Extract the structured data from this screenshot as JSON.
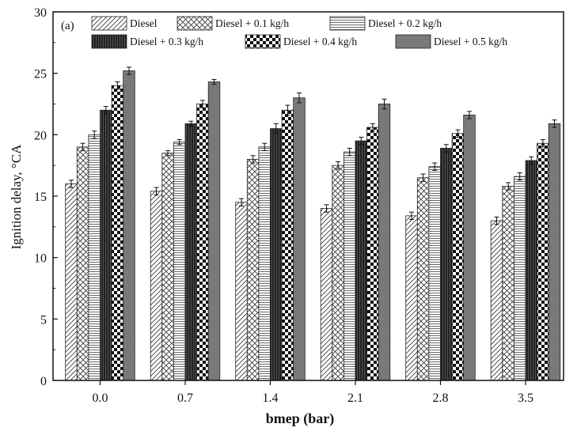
{
  "chart_data": {
    "type": "bar",
    "panel_label": "(a)",
    "xlabel": "bmep (bar)",
    "ylabel": "Ignition delay, °CA",
    "ylim": [
      0,
      30
    ],
    "yticks": [
      0,
      5,
      10,
      15,
      20,
      25,
      30
    ],
    "grid": false,
    "legend_position": "top",
    "categories": [
      "0.0",
      "0.7",
      "1.4",
      "2.1",
      "2.8",
      "3.5"
    ],
    "series": [
      {
        "name": "Diesel",
        "pattern": "diagonal",
        "values": [
          16.0,
          15.4,
          14.5,
          14.0,
          13.4,
          13.0
        ],
        "errors": [
          0.3,
          0.3,
          0.3,
          0.3,
          0.3,
          0.3
        ]
      },
      {
        "name": "Diesel + 0.1 kg/h",
        "pattern": "crosshatch",
        "values": [
          19.0,
          18.5,
          18.0,
          17.5,
          16.5,
          15.8
        ],
        "errors": [
          0.3,
          0.2,
          0.3,
          0.3,
          0.3,
          0.3
        ]
      },
      {
        "name": "Diesel + 0.2 kg/h",
        "pattern": "horizontal",
        "values": [
          20.0,
          19.4,
          19.0,
          18.6,
          17.4,
          16.6
        ],
        "errors": [
          0.3,
          0.2,
          0.3,
          0.3,
          0.3,
          0.3
        ]
      },
      {
        "name": "Diesel + 0.3 kg/h",
        "pattern": "dark-vertical",
        "values": [
          22.0,
          20.9,
          20.5,
          19.5,
          18.9,
          17.9
        ],
        "errors": [
          0.3,
          0.2,
          0.4,
          0.3,
          0.3,
          0.3
        ]
      },
      {
        "name": "Diesel + 0.4 kg/h",
        "pattern": "checker",
        "values": [
          24.0,
          22.5,
          22.0,
          20.6,
          20.1,
          19.3
        ],
        "errors": [
          0.3,
          0.3,
          0.4,
          0.3,
          0.3,
          0.3
        ]
      },
      {
        "name": "Diesel + 0.5 kg/h",
        "pattern": "solid-gray",
        "values": [
          25.2,
          24.3,
          23.0,
          22.5,
          21.6,
          20.9
        ],
        "errors": [
          0.3,
          0.2,
          0.4,
          0.4,
          0.3,
          0.3
        ]
      }
    ],
    "colors": {
      "axis": "#111111",
      "bar_outline": "#222222",
      "solid_fill": "#7a7a7a"
    }
  }
}
